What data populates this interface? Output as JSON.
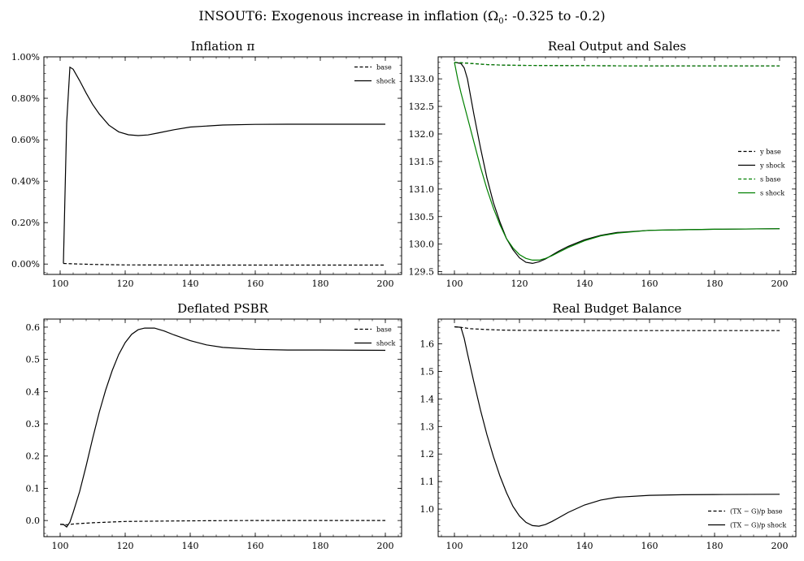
{
  "figure": {
    "title_pre": "INSOUT6: Exogenous increase in inflation (Ω",
    "title_sub": "0",
    "title_post": ": -0.325 to -0.2)"
  },
  "chart_data": [
    {
      "type": "line",
      "title": "Inflation π",
      "xlim": [
        95,
        205
      ],
      "ylim": [
        -0.05,
        1.0
      ],
      "xticks": [
        100,
        120,
        140,
        160,
        180,
        200
      ],
      "yticks": [
        0.0,
        0.2,
        0.4,
        0.6,
        0.8,
        1.0
      ],
      "ytick_labels": [
        "0.00%",
        "0.20%",
        "0.40%",
        "0.60%",
        "0.80%",
        "1.00%"
      ],
      "legend": "top-right",
      "series": [
        {
          "name": "base",
          "style": "dashed",
          "color": "#000000",
          "x": [
            101,
            102,
            110,
            120,
            140,
            160,
            180,
            200
          ],
          "y": [
            0.003,
            0.002,
            -0.002,
            -0.004,
            -0.005,
            -0.005,
            -0.005,
            -0.005
          ]
        },
        {
          "name": "shock",
          "style": "solid",
          "color": "#000000",
          "x": [
            101,
            102,
            103,
            104,
            106,
            108,
            110,
            112,
            115,
            118,
            121,
            124,
            127,
            130,
            135,
            140,
            150,
            160,
            170,
            180,
            190,
            200
          ],
          "y": [
            0.003,
            0.68,
            0.95,
            0.94,
            0.885,
            0.825,
            0.77,
            0.725,
            0.67,
            0.638,
            0.624,
            0.62,
            0.623,
            0.632,
            0.648,
            0.661,
            0.671,
            0.674,
            0.675,
            0.675,
            0.675,
            0.675
          ]
        }
      ]
    },
    {
      "type": "line",
      "title": "Real Output and Sales",
      "xlim": [
        95,
        205
      ],
      "ylim": [
        129.45,
        133.4
      ],
      "xticks": [
        100,
        120,
        140,
        160,
        180,
        200
      ],
      "yticks": [
        129.5,
        130.0,
        130.5,
        131.0,
        131.5,
        132.0,
        132.5,
        133.0
      ],
      "ytick_labels": [
        "129.5",
        "130.0",
        "130.5",
        "131.0",
        "131.5",
        "132.0",
        "132.5",
        "133.0"
      ],
      "legend": "center-right",
      "series": [
        {
          "name": "y base",
          "style": "dashed",
          "color": "#000000",
          "x": [
            100,
            105,
            110,
            115,
            120,
            140,
            160,
            180,
            200
          ],
          "y": [
            133.3,
            133.28,
            133.26,
            133.25,
            133.245,
            133.24,
            133.235,
            133.235,
            133.235
          ]
        },
        {
          "name": "y shock",
          "style": "solid",
          "color": "#000000",
          "x": [
            100,
            102,
            103,
            104,
            106,
            108,
            110,
            112,
            114,
            116,
            118,
            120,
            122,
            124,
            126,
            128,
            130,
            132,
            135,
            140,
            145,
            150,
            160,
            170,
            180,
            200
          ],
          "y": [
            133.3,
            133.28,
            133.2,
            133.0,
            132.35,
            131.75,
            131.2,
            130.75,
            130.4,
            130.1,
            129.9,
            129.75,
            129.67,
            129.65,
            129.68,
            129.73,
            129.8,
            129.87,
            129.96,
            130.08,
            130.16,
            130.21,
            130.25,
            130.26,
            130.27,
            130.28
          ]
        },
        {
          "name": "s base",
          "style": "dashed",
          "color": "#008000",
          "x": [
            100,
            105,
            110,
            115,
            120,
            140,
            160,
            180,
            200
          ],
          "y": [
            133.3,
            133.28,
            133.26,
            133.25,
            133.245,
            133.24,
            133.235,
            133.235,
            133.235
          ]
        },
        {
          "name": "s shock",
          "style": "solid",
          "color": "#008000",
          "x": [
            100,
            101,
            102,
            104,
            106,
            108,
            110,
            112,
            114,
            116,
            118,
            120,
            122,
            124,
            126,
            128,
            130,
            132,
            135,
            140,
            145,
            150,
            160,
            170,
            180,
            200
          ],
          "y": [
            133.3,
            133.0,
            132.75,
            132.3,
            131.85,
            131.4,
            131.0,
            130.65,
            130.35,
            130.1,
            129.93,
            129.81,
            129.74,
            129.71,
            129.71,
            129.74,
            129.79,
            129.85,
            129.94,
            130.06,
            130.15,
            130.2,
            130.25,
            130.26,
            130.27,
            130.28
          ]
        }
      ]
    },
    {
      "type": "line",
      "title": "Deflated PSBR",
      "xlim": [
        95,
        205
      ],
      "ylim": [
        -0.05,
        0.625
      ],
      "xticks": [
        100,
        120,
        140,
        160,
        180,
        200
      ],
      "yticks": [
        0.0,
        0.1,
        0.2,
        0.3,
        0.4,
        0.5,
        0.6
      ],
      "ytick_labels": [
        "0.0",
        "0.1",
        "0.2",
        "0.3",
        "0.4",
        "0.5",
        "0.6"
      ],
      "legend": "top-right",
      "series": [
        {
          "name": "base",
          "style": "dashed",
          "color": "#000000",
          "x": [
            100,
            102,
            105,
            110,
            115,
            120,
            130,
            140,
            160,
            180,
            200
          ],
          "y": [
            -0.012,
            -0.013,
            -0.01,
            -0.007,
            -0.005,
            -0.003,
            -0.002,
            -0.001,
            0.0,
            0.0,
            0.0
          ]
        },
        {
          "name": "shock",
          "style": "solid",
          "color": "#000000",
          "x": [
            100,
            101,
            102,
            103,
            104,
            106,
            108,
            110,
            112,
            114,
            116,
            118,
            120,
            122,
            124,
            126,
            128,
            129,
            130,
            132,
            135,
            140,
            145,
            150,
            160,
            170,
            180,
            200
          ],
          "y": [
            -0.012,
            -0.012,
            -0.02,
            -0.005,
            0.025,
            0.09,
            0.17,
            0.255,
            0.335,
            0.405,
            0.465,
            0.515,
            0.552,
            0.578,
            0.592,
            0.597,
            0.597,
            0.597,
            0.594,
            0.588,
            0.576,
            0.558,
            0.545,
            0.537,
            0.531,
            0.529,
            0.529,
            0.528
          ]
        }
      ]
    },
    {
      "type": "line",
      "title": "Real Budget Balance",
      "xlim": [
        95,
        205
      ],
      "ylim": [
        0.9,
        1.69
      ],
      "xticks": [
        100,
        120,
        140,
        160,
        180,
        200
      ],
      "yticks": [
        1.0,
        1.1,
        1.2,
        1.3,
        1.4,
        1.5,
        1.6
      ],
      "ytick_labels": [
        "1.0",
        "1.1",
        "1.2",
        "1.3",
        "1.4",
        "1.5",
        "1.6"
      ],
      "legend": "bottom-right",
      "series": [
        {
          "name": "(TX − G)/p base",
          "style": "dashed",
          "color": "#000000",
          "x": [
            100,
            102,
            105,
            110,
            115,
            120,
            140,
            160,
            180,
            200
          ],
          "y": [
            1.662,
            1.66,
            1.655,
            1.652,
            1.65,
            1.649,
            1.648,
            1.648,
            1.648,
            1.648
          ]
        },
        {
          "name": "(TX − G)/p shock",
          "style": "solid",
          "color": "#000000",
          "x": [
            100,
            102,
            103,
            104,
            106,
            108,
            110,
            112,
            114,
            116,
            118,
            120,
            122,
            124,
            126,
            128,
            130,
            132,
            135,
            140,
            145,
            150,
            160,
            170,
            180,
            200
          ],
          "y": [
            1.662,
            1.66,
            1.62,
            1.565,
            1.46,
            1.36,
            1.27,
            1.19,
            1.12,
            1.06,
            1.01,
            0.975,
            0.952,
            0.94,
            0.938,
            0.944,
            0.955,
            0.968,
            0.988,
            1.015,
            1.033,
            1.043,
            1.05,
            1.052,
            1.053,
            1.054
          ]
        }
      ]
    }
  ]
}
